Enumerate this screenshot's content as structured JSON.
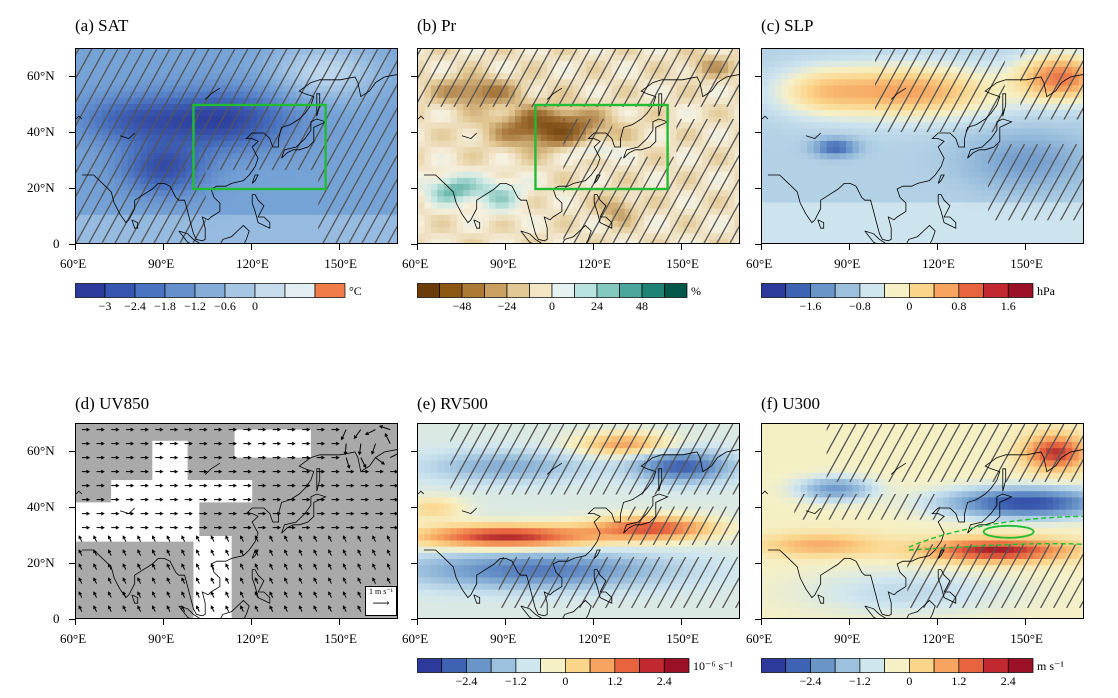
{
  "figure": {
    "lon_ticks": [
      "60°E",
      "90°E",
      "120°E",
      "150°E"
    ],
    "lat_ticks": [
      "60°N",
      "40°N",
      "20°N",
      "0"
    ],
    "box_color": "#22bb33"
  },
  "panels": [
    {
      "id": "a",
      "title": "(a) SAT",
      "field": "sat",
      "has_box": true,
      "colorbar": {
        "unit": "°C",
        "colors": [
          "#2b3a9b",
          "#3557b2",
          "#4a74c2",
          "#6590cc",
          "#86acd8",
          "#a6c6e3",
          "#c6dcec",
          "#e4eff4",
          "#f07c4a"
        ],
        "labels": [
          "−3",
          "−2.4",
          "−1.8",
          "−1.2",
          "−0.6",
          "0"
        ],
        "label_positions": [
          1,
          2,
          3,
          4,
          5,
          6
        ]
      }
    },
    {
      "id": "b",
      "title": "(b) Pr",
      "field": "pr",
      "has_box": true,
      "colorbar": {
        "unit": "%",
        "colors": [
          "#6b3c09",
          "#8c5613",
          "#ad7a36",
          "#c9a062",
          "#e2c894",
          "#f3e6c4",
          "#e6f2f2",
          "#b9e3df",
          "#83c9c0",
          "#4ba79c",
          "#1f8275",
          "#00574a"
        ],
        "labels": [
          "−48",
          "−24",
          "0",
          "24",
          "48"
        ],
        "label_positions": [
          2,
          4,
          6,
          8,
          10
        ]
      }
    },
    {
      "id": "c",
      "title": "(c) SLP",
      "field": "slp",
      "has_box": false,
      "colorbar": {
        "unit": "hPa",
        "colors": [
          "#2b3a9b",
          "#3f63b3",
          "#6a95c9",
          "#9cc0dd",
          "#d0e6ef",
          "#f5f0c6",
          "#fbd58a",
          "#f6a45f",
          "#e7643e",
          "#c22830",
          "#9b1027"
        ],
        "labels": [
          "−1.6",
          "−0.8",
          "0",
          "0.8",
          "1.6"
        ],
        "label_positions": [
          2,
          4,
          6,
          8,
          10
        ]
      }
    },
    {
      "id": "d",
      "title": "(d) UV850",
      "field": "uv",
      "has_box": false,
      "ref_vector": "1 m s⁻¹"
    },
    {
      "id": "e",
      "title": "(e) RV500",
      "field": "rv",
      "has_box": false,
      "colorbar": {
        "unit": "10⁻⁶ s⁻¹",
        "colors": [
          "#2b3a9b",
          "#3f63b3",
          "#6a95c9",
          "#9cc0dd",
          "#d0e6ef",
          "#f5f0c6",
          "#fbd58a",
          "#f6a45f",
          "#e7643e",
          "#c22830",
          "#9b1027"
        ],
        "labels": [
          "−2.4",
          "−1.2",
          "0",
          "1.2",
          "2.4"
        ],
        "label_positions": [
          2,
          4,
          6,
          8,
          10
        ]
      }
    },
    {
      "id": "f",
      "title": "(f) U300",
      "field": "u",
      "has_box": false,
      "colorbar": {
        "unit": "m s⁻¹",
        "colors": [
          "#2b3a9b",
          "#3f63b3",
          "#6a95c9",
          "#9cc0dd",
          "#d0e6ef",
          "#f5f0c6",
          "#fbd58a",
          "#f6a45f",
          "#e7643e",
          "#c22830",
          "#9b1027"
        ],
        "labels": [
          "−2.4",
          "−1.2",
          "0",
          "1.2",
          "2.4"
        ],
        "label_positions": [
          2,
          4,
          6,
          8,
          10
        ]
      }
    }
  ]
}
